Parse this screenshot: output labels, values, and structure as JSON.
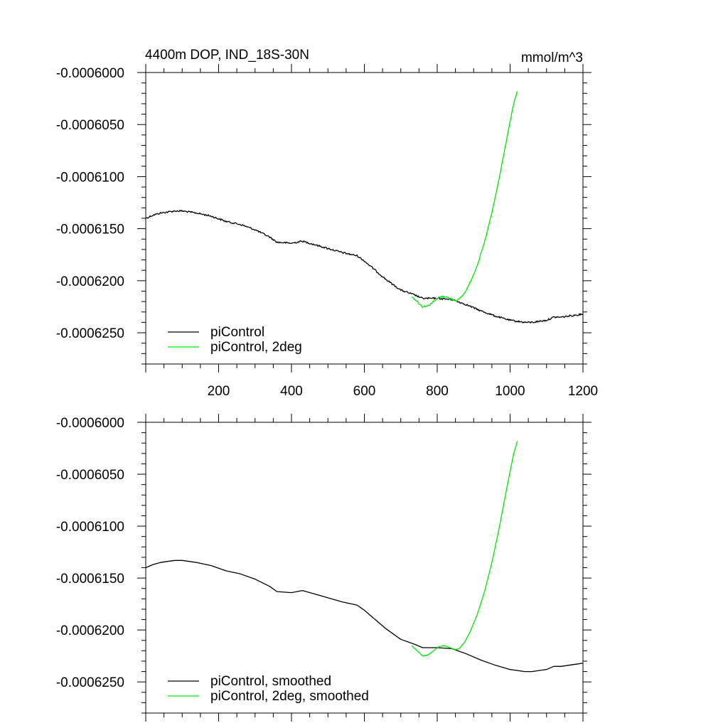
{
  "chart_data": [
    {
      "type": "line",
      "title_left": "4400m DOP, IND_18S-30N",
      "title_right": "mmol/m^3",
      "xlim": [
        0,
        1200
      ],
      "ylim": [
        -0.000628,
        -0.0006
      ],
      "xticks": [
        200,
        400,
        600,
        800,
        1000,
        1200
      ],
      "xtick_labels": [
        "200",
        "400",
        "600",
        "800",
        "1000",
        "1200"
      ],
      "yticks": [
        -0.0006,
        -0.000605,
        -0.00061,
        -0.000615,
        -0.00062,
        -0.000625
      ],
      "ytick_labels": [
        "-0.0006000",
        "-0.0006050",
        "-0.0006100",
        "-0.0006150",
        "-0.0006200",
        "-0.0006250"
      ],
      "legend_position": "bottom-left",
      "series": [
        {
          "name": "piControl",
          "color": "#000000",
          "noisy": true,
          "x": [
            0,
            20,
            40,
            60,
            80,
            100,
            140,
            180,
            220,
            260,
            300,
            340,
            360,
            400,
            430,
            460,
            500,
            540,
            580,
            600,
            620,
            660,
            700,
            740,
            760,
            800,
            840,
            880,
            920,
            960,
            1000,
            1040,
            1060,
            1080,
            1100,
            1120,
            1140,
            1160,
            1180,
            1200
          ],
          "y": [
            -0.000614,
            -0.0006137,
            -0.0006135,
            -0.0006134,
            -0.0006133,
            -0.0006133,
            -0.0006135,
            -0.0006138,
            -0.0006143,
            -0.0006146,
            -0.0006151,
            -0.0006158,
            -0.0006163,
            -0.0006164,
            -0.0006162,
            -0.0006165,
            -0.0006169,
            -0.0006173,
            -0.0006176,
            -0.0006181,
            -0.0006187,
            -0.0006199,
            -0.0006209,
            -0.0006214,
            -0.0006217,
            -0.0006217,
            -0.0006218,
            -0.0006223,
            -0.0006229,
            -0.0006234,
            -0.0006238,
            -0.000624,
            -0.000624,
            -0.0006239,
            -0.0006238,
            -0.0006235,
            -0.0006235,
            -0.0006234,
            -0.0006233,
            -0.0006232
          ]
        },
        {
          "name": "piControl, 2deg",
          "color": "#00e600",
          "noisy": true,
          "x": [
            730,
            745,
            760,
            775,
            790,
            805,
            820,
            835,
            850,
            860,
            875,
            890,
            910,
            930,
            950,
            970,
            990,
            1010,
            1020
          ],
          "y": [
            -0.0006215,
            -0.000622,
            -0.0006225,
            -0.0006224,
            -0.000622,
            -0.0006216,
            -0.0006215,
            -0.0006217,
            -0.0006219,
            -0.0006218,
            -0.0006212,
            -0.0006202,
            -0.0006185,
            -0.0006163,
            -0.0006135,
            -0.0006102,
            -0.0006065,
            -0.000603,
            -0.0006018
          ]
        }
      ]
    },
    {
      "type": "line",
      "xlim": [
        0,
        1200
      ],
      "ylim": [
        -0.000628,
        -0.0006
      ],
      "xticks": [
        200,
        400,
        600,
        800,
        1000,
        1200
      ],
      "yticks": [
        -0.0006,
        -0.000605,
        -0.00061,
        -0.000615,
        -0.00062,
        -0.000625
      ],
      "ytick_labels": [
        "-0.0006000",
        "-0.0006050",
        "-0.0006100",
        "-0.0006150",
        "-0.0006200",
        "-0.0006250"
      ],
      "legend_position": "bottom-left",
      "series": [
        {
          "name": "piControl, smoothed",
          "color": "#000000",
          "noisy": false,
          "x": [
            0,
            20,
            40,
            60,
            80,
            100,
            140,
            180,
            220,
            260,
            300,
            340,
            360,
            400,
            430,
            460,
            500,
            540,
            580,
            600,
            620,
            660,
            700,
            740,
            760,
            800,
            840,
            880,
            920,
            960,
            1000,
            1040,
            1060,
            1080,
            1100,
            1120,
            1140,
            1160,
            1180,
            1200
          ],
          "y": [
            -0.000614,
            -0.0006137,
            -0.0006135,
            -0.0006134,
            -0.0006133,
            -0.0006133,
            -0.0006135,
            -0.0006138,
            -0.0006143,
            -0.0006146,
            -0.0006151,
            -0.0006158,
            -0.0006163,
            -0.0006164,
            -0.0006162,
            -0.0006165,
            -0.0006169,
            -0.0006173,
            -0.0006176,
            -0.0006181,
            -0.0006187,
            -0.0006199,
            -0.0006209,
            -0.0006214,
            -0.0006217,
            -0.0006217,
            -0.0006218,
            -0.0006223,
            -0.0006229,
            -0.0006234,
            -0.0006238,
            -0.000624,
            -0.000624,
            -0.0006239,
            -0.0006238,
            -0.0006235,
            -0.0006235,
            -0.0006234,
            -0.0006233,
            -0.0006232
          ]
        },
        {
          "name": "piControl, 2deg, smoothed",
          "color": "#00e600",
          "noisy": false,
          "x": [
            730,
            745,
            760,
            775,
            790,
            805,
            820,
            835,
            850,
            860,
            875,
            890,
            910,
            930,
            950,
            970,
            990,
            1010,
            1020
          ],
          "y": [
            -0.0006215,
            -0.000622,
            -0.0006225,
            -0.0006224,
            -0.000622,
            -0.0006216,
            -0.0006215,
            -0.0006217,
            -0.0006219,
            -0.0006218,
            -0.0006212,
            -0.0006202,
            -0.0006185,
            -0.0006163,
            -0.0006135,
            -0.0006102,
            -0.0006065,
            -0.000603,
            -0.0006018
          ]
        }
      ]
    }
  ]
}
